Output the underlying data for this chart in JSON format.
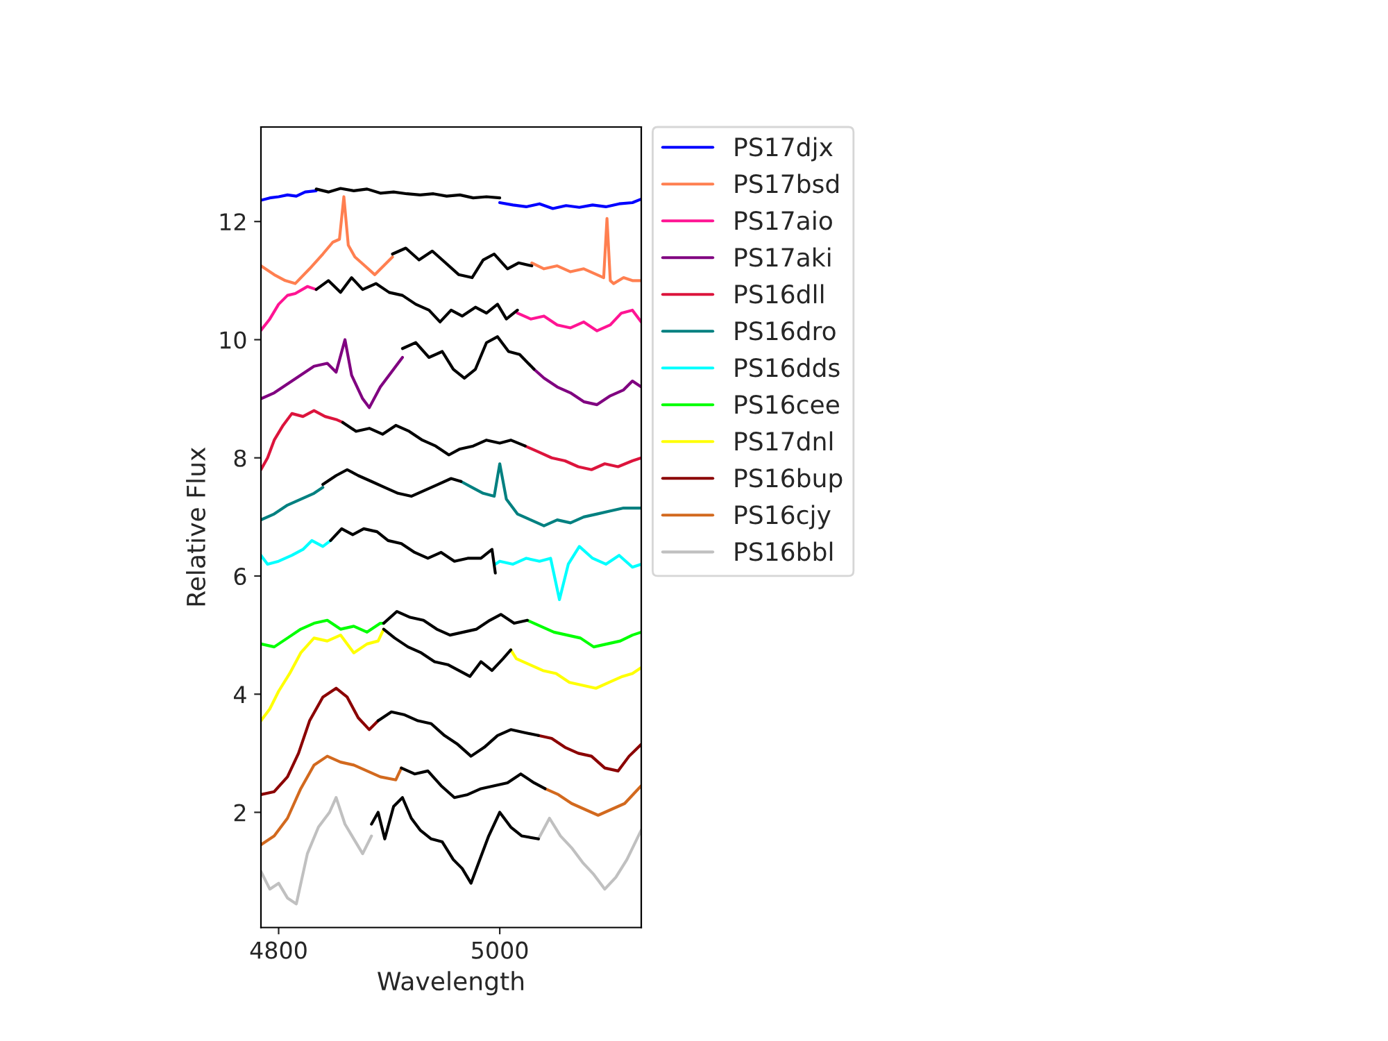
{
  "chart_data": {
    "type": "line",
    "xlabel": "Wavelength",
    "ylabel": "Relative Flux",
    "xlim": [
      4784,
      5128
    ],
    "ylim": [
      0.05,
      13.6
    ],
    "xticks": [
      4800,
      5000
    ],
    "yticks": [
      2,
      4,
      6,
      8,
      10,
      12
    ],
    "grid": false,
    "legend": "right",
    "line_style": "solid",
    "marker": "none",
    "series": [
      {
        "name": "PS17djx",
        "color": "#0000ff",
        "x": [
          4784,
          4792,
          4800,
          4808,
          4816,
          4824,
          4834,
          4917,
          5000,
          5012,
          5024,
          5036,
          5048,
          5060,
          5072,
          5084,
          5096,
          5108,
          5120,
          5128
        ],
        "values": [
          12.36,
          12.4,
          12.42,
          12.45,
          12.43,
          12.5,
          12.52,
          null,
          12.32,
          12.28,
          12.25,
          12.3,
          12.22,
          12.27,
          12.24,
          12.28,
          12.25,
          12.3,
          12.32,
          12.38
        ]
      },
      {
        "name": "PS17bsd",
        "color": "#ff7f50",
        "x": [
          4784,
          4796,
          4806,
          4815,
          4828,
          4840,
          4849,
          4855,
          4859,
          4863,
          4869,
          4878,
          4887,
          4895,
          4903,
          4966,
          5029,
          5040,
          5052,
          5064,
          5076,
          5088,
          5094,
          5097,
          5100,
          5103,
          5112,
          5120,
          5128
        ],
        "values": [
          11.25,
          11.1,
          11.0,
          10.95,
          11.2,
          11.45,
          11.65,
          11.7,
          12.42,
          11.6,
          11.4,
          11.25,
          11.1,
          11.25,
          11.4,
          null,
          11.3,
          11.2,
          11.25,
          11.15,
          11.2,
          11.1,
          11.05,
          12.05,
          11.0,
          10.95,
          11.05,
          11.0,
          11.0
        ]
      },
      {
        "name": "PS17aio",
        "color": "#ff1493",
        "x": [
          4784,
          4792,
          4800,
          4808,
          4815,
          4826,
          4834,
          4925,
          5016,
          5028,
          5040,
          5052,
          5064,
          5076,
          5088,
          5100,
          5110,
          5120,
          5128
        ],
        "values": [
          10.16,
          10.35,
          10.6,
          10.75,
          10.78,
          10.9,
          10.85,
          null,
          10.45,
          10.35,
          10.4,
          10.25,
          10.2,
          10.3,
          10.15,
          10.25,
          10.45,
          10.5,
          10.3
        ]
      },
      {
        "name": "PS17aki",
        "color": "#800080",
        "x": [
          4784,
          4796,
          4808,
          4820,
          4832,
          4844,
          4852,
          4860,
          4866,
          4876,
          4882,
          4892,
          4902,
          4912,
          4970,
          5031,
          5040,
          5052,
          5064,
          5076,
          5088,
          5100,
          5112,
          5120,
          5128
        ],
        "values": [
          9.0,
          9.1,
          9.25,
          9.4,
          9.55,
          9.6,
          9.45,
          10.0,
          9.4,
          9.0,
          8.85,
          9.2,
          9.45,
          9.7,
          null,
          9.5,
          9.35,
          9.2,
          9.1,
          8.95,
          8.9,
          9.05,
          9.15,
          9.3,
          9.2
        ]
      },
      {
        "name": "PS16dll",
        "color": "#dc143c",
        "x": [
          4784,
          4790,
          4796,
          4804,
          4812,
          4822,
          4832,
          4842,
          4852,
          4858,
          4940,
          5023,
          5035,
          5047,
          5059,
          5071,
          5083,
          5095,
          5107,
          5120,
          5128
        ],
        "values": [
          7.8,
          8.0,
          8.3,
          8.55,
          8.75,
          8.7,
          8.8,
          8.7,
          8.65,
          8.6,
          null,
          8.2,
          8.1,
          8.0,
          7.95,
          7.85,
          7.8,
          7.9,
          7.85,
          7.95,
          8.0
        ]
      },
      {
        "name": "PS16dro",
        "color": "#008080",
        "x": [
          4784,
          4796,
          4808,
          4820,
          4832,
          4840,
          4900,
          4965,
          4975,
          4985,
          4995,
          5000,
          5006,
          5016,
          5028,
          5040,
          5052,
          5064,
          5076,
          5088,
          5100,
          5112,
          5128
        ],
        "values": [
          6.95,
          7.05,
          7.2,
          7.3,
          7.4,
          7.5,
          null,
          7.6,
          7.5,
          7.4,
          7.35,
          7.9,
          7.3,
          7.05,
          6.95,
          6.85,
          6.95,
          6.9,
          7.0,
          7.05,
          7.1,
          7.15,
          7.15
        ]
      },
      {
        "name": "PS16dds",
        "color": "#00ffff",
        "x": [
          4784,
          4790,
          4800,
          4812,
          4822,
          4830,
          4840,
          4847,
          4920,
          4996,
          5000,
          5012,
          5024,
          5036,
          5046,
          5054,
          5062,
          5072,
          5084,
          5096,
          5108,
          5120,
          5128
        ],
        "values": [
          6.35,
          6.2,
          6.25,
          6.35,
          6.45,
          6.6,
          6.5,
          6.6,
          null,
          6.2,
          6.25,
          6.2,
          6.3,
          6.25,
          6.3,
          5.6,
          6.2,
          6.5,
          6.3,
          6.2,
          6.35,
          6.15,
          6.2
        ]
      },
      {
        "name": "PS16cee",
        "color": "#00ff00",
        "x": [
          4784,
          4796,
          4808,
          4820,
          4832,
          4844,
          4856,
          4868,
          4880,
          4892,
          4895,
          4960,
          5025,
          5037,
          5049,
          5061,
          5073,
          5085,
          5097,
          5109,
          5120,
          5128
        ],
        "values": [
          4.85,
          4.8,
          4.95,
          5.1,
          5.2,
          5.25,
          5.1,
          5.15,
          5.05,
          5.2,
          5.2,
          null,
          5.25,
          5.15,
          5.05,
          5.0,
          4.95,
          4.8,
          4.85,
          4.9,
          5.0,
          5.05
        ]
      },
      {
        "name": "PS17dnl",
        "color": "#ffff00",
        "x": [
          4784,
          4792,
          4800,
          4810,
          4820,
          4832,
          4844,
          4856,
          4868,
          4880,
          4890,
          4895,
          4950,
          5010,
          5015,
          5027,
          5039,
          5051,
          5063,
          5075,
          5087,
          5099,
          5111,
          5120,
          5128
        ],
        "values": [
          3.55,
          3.75,
          4.05,
          4.35,
          4.7,
          4.95,
          4.9,
          5.0,
          4.7,
          4.85,
          4.9,
          5.1,
          null,
          4.75,
          4.6,
          4.5,
          4.4,
          4.35,
          4.2,
          4.15,
          4.1,
          4.2,
          4.3,
          4.35,
          4.45
        ]
      },
      {
        "name": "PS16bup",
        "color": "#8b0000",
        "x": [
          4784,
          4796,
          4808,
          4818,
          4828,
          4840,
          4852,
          4862,
          4872,
          4882,
          4890,
          4960,
          5035,
          5047,
          5059,
          5071,
          5083,
          5095,
          5107,
          5117,
          5128
        ],
        "values": [
          2.3,
          2.35,
          2.6,
          3.0,
          3.55,
          3.95,
          4.1,
          3.95,
          3.6,
          3.4,
          3.55,
          null,
          3.3,
          3.25,
          3.1,
          3.0,
          2.95,
          2.75,
          2.7,
          2.95,
          3.15
        ]
      },
      {
        "name": "PS16cjy",
        "color": "#d2691e",
        "x": [
          4784,
          4796,
          4808,
          4820,
          4832,
          4844,
          4856,
          4868,
          4880,
          4892,
          4906,
          4911,
          4975,
          5041,
          5053,
          5065,
          5077,
          5089,
          5101,
          5113,
          5128
        ],
        "values": [
          1.45,
          1.6,
          1.9,
          2.4,
          2.8,
          2.95,
          2.85,
          2.8,
          2.7,
          2.6,
          2.55,
          2.75,
          null,
          2.4,
          2.3,
          2.15,
          2.05,
          1.95,
          2.05,
          2.15,
          2.45
        ]
      },
      {
        "name": "PS16bbl",
        "color": "#c0c0c0",
        "x": [
          4784,
          4792,
          4800,
          4808,
          4816,
          4826,
          4836,
          4846,
          4852,
          4860,
          4868,
          4876,
          4884,
          4960,
          5035,
          5045,
          5055,
          5065,
          5075,
          5085,
          5095,
          5105,
          5115,
          5128
        ],
        "values": [
          1.0,
          0.7,
          0.8,
          0.55,
          0.45,
          1.3,
          1.75,
          2.0,
          2.25,
          1.8,
          1.55,
          1.3,
          1.6,
          null,
          1.55,
          1.9,
          1.6,
          1.4,
          1.15,
          0.95,
          0.7,
          0.9,
          1.2,
          1.7
        ]
      },
      {
        "color": "#000000",
        "x": [
          4834,
          4845,
          4856,
          4868,
          4880,
          4892,
          4904,
          4916,
          4928,
          4940,
          4952,
          4964,
          4976,
          4988,
          5000
        ],
        "values": [
          12.55,
          12.5,
          12.56,
          12.52,
          12.55,
          12.48,
          12.5,
          12.47,
          12.45,
          12.47,
          12.43,
          12.45,
          12.4,
          12.42,
          12.4
        ]
      },
      {
        "color": "#000000",
        "x": [
          4903,
          4915,
          4927,
          4939,
          4951,
          4963,
          4975,
          4985,
          4995,
          5007,
          5017,
          5029
        ],
        "values": [
          11.45,
          11.55,
          11.35,
          11.5,
          11.3,
          11.1,
          11.05,
          11.35,
          11.45,
          11.2,
          11.3,
          11.25
        ]
      },
      {
        "color": "#000000",
        "x": [
          4834,
          4845,
          4856,
          4866,
          4876,
          4888,
          4900,
          4912,
          4924,
          4936,
          4946,
          4956,
          4966,
          4978,
          4988,
          4998,
          5006,
          5016
        ],
        "values": [
          10.85,
          11.0,
          10.8,
          11.05,
          10.85,
          10.95,
          10.8,
          10.75,
          10.6,
          10.5,
          10.3,
          10.5,
          10.4,
          10.55,
          10.45,
          10.6,
          10.35,
          10.5
        ]
      },
      {
        "color": "#000000",
        "x": [
          4912,
          4924,
          4936,
          4948,
          4958,
          4968,
          4978,
          4988,
          4998,
          5008,
          5018,
          5031
        ],
        "values": [
          9.85,
          9.95,
          9.7,
          9.8,
          9.5,
          9.35,
          9.5,
          9.95,
          10.05,
          9.8,
          9.75,
          9.5
        ]
      },
      {
        "color": "#000000",
        "x": [
          4858,
          4870,
          4882,
          4894,
          4906,
          4918,
          4930,
          4942,
          4954,
          4964,
          4976,
          4988,
          5000,
          5010,
          5023
        ],
        "values": [
          8.6,
          8.45,
          8.5,
          8.4,
          8.55,
          8.45,
          8.3,
          8.2,
          8.05,
          8.15,
          8.2,
          8.3,
          8.25,
          8.3,
          8.2
        ]
      },
      {
        "color": "#000000",
        "x": [
          4840,
          4852,
          4862,
          4872,
          4884,
          4896,
          4908,
          4920,
          4932,
          4944,
          4956,
          4965
        ],
        "values": [
          7.55,
          7.7,
          7.8,
          7.7,
          7.6,
          7.5,
          7.4,
          7.35,
          7.45,
          7.55,
          7.65,
          7.6
        ]
      },
      {
        "color": "#000000",
        "x": [
          4847,
          4857,
          4867,
          4877,
          4889,
          4899,
          4911,
          4923,
          4935,
          4947,
          4959,
          4971,
          4983,
          4993,
          4996
        ],
        "values": [
          6.6,
          6.8,
          6.7,
          6.8,
          6.75,
          6.6,
          6.55,
          6.4,
          6.3,
          6.4,
          6.25,
          6.3,
          6.3,
          6.45,
          6.05
        ]
      },
      {
        "color": "#000000",
        "x": [
          4895,
          4907,
          4919,
          4931,
          4943,
          4955,
          4967,
          4979,
          4991,
          5001,
          5013,
          5025
        ],
        "values": [
          5.2,
          5.4,
          5.3,
          5.25,
          5.1,
          5.0,
          5.05,
          5.1,
          5.25,
          5.35,
          5.2,
          5.25
        ]
      },
      {
        "color": "#000000",
        "x": [
          4895,
          4905,
          4917,
          4929,
          4941,
          4953,
          4963,
          4973,
          4983,
          4993,
          5003,
          5010
        ],
        "values": [
          5.1,
          4.95,
          4.8,
          4.7,
          4.55,
          4.5,
          4.4,
          4.3,
          4.55,
          4.4,
          4.6,
          4.75
        ]
      },
      {
        "color": "#000000",
        "x": [
          4890,
          4902,
          4914,
          4926,
          4938,
          4950,
          4962,
          4974,
          4986,
          4998,
          5010,
          5022,
          5035
        ],
        "values": [
          3.55,
          3.7,
          3.65,
          3.55,
          3.5,
          3.3,
          3.15,
          2.95,
          3.1,
          3.3,
          3.4,
          3.35,
          3.3
        ]
      },
      {
        "color": "#000000",
        "x": [
          4911,
          4923,
          4935,
          4947,
          4959,
          4971,
          4983,
          4995,
          5007,
          5019,
          5031,
          5041
        ],
        "values": [
          2.75,
          2.65,
          2.7,
          2.45,
          2.25,
          2.3,
          2.4,
          2.45,
          2.5,
          2.65,
          2.5,
          2.4
        ]
      },
      {
        "color": "#000000",
        "x": [
          4884,
          4890,
          4896,
          4904,
          4912,
          4920,
          4928,
          4938,
          4948,
          4958,
          4966,
          4974,
          4982,
          4990,
          5000,
          5010,
          5020,
          5035
        ],
        "values": [
          1.8,
          2.0,
          1.55,
          2.1,
          2.25,
          1.9,
          1.7,
          1.55,
          1.5,
          1.2,
          1.05,
          0.8,
          1.2,
          1.6,
          2.0,
          1.75,
          1.6,
          1.55
        ]
      }
    ]
  }
}
